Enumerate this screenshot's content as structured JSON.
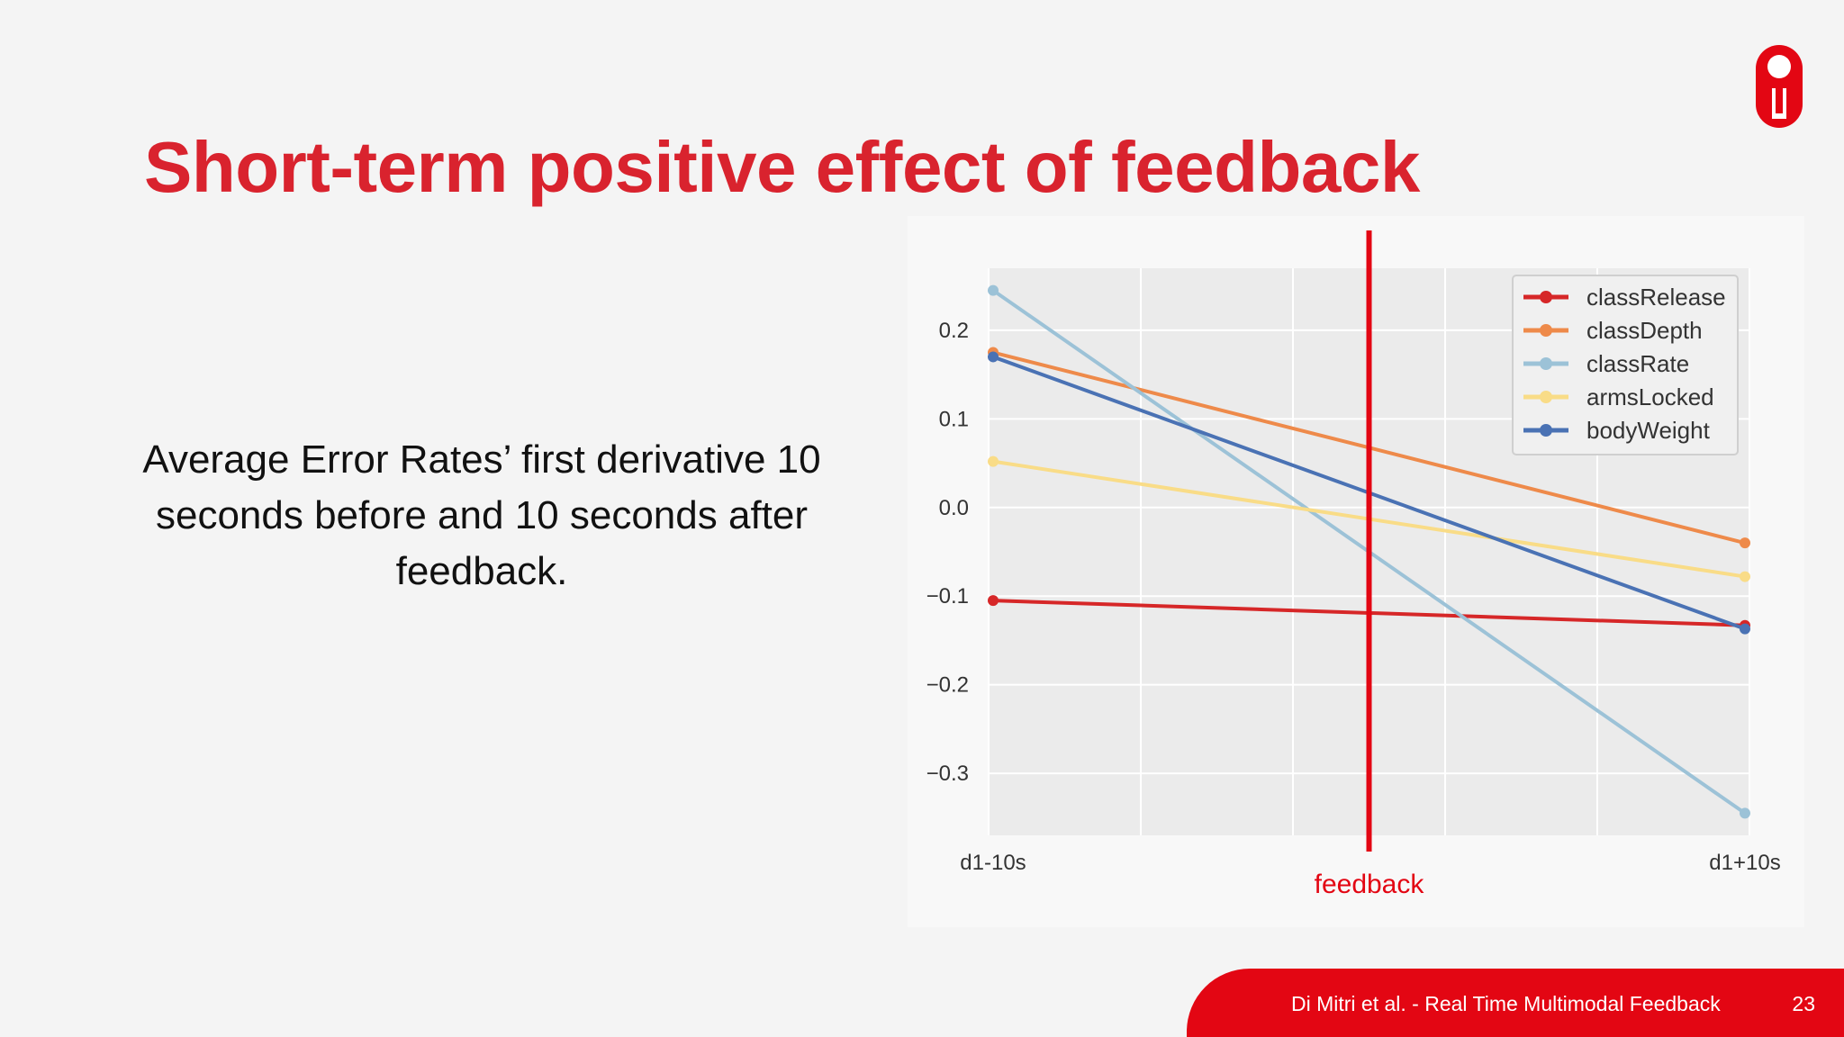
{
  "slide": {
    "title": "Short-term positive effect of feedback",
    "description": "Average Error Rates’ first derivative 10 seconds before and 10 seconds after feedback.",
    "footer_text": "Di Mitri et al. - Real Time Multimodal Feedback",
    "page_number": "23",
    "logo_icon": "ou-university-logo",
    "accent_color": "#e30613"
  },
  "chart_data": {
    "type": "line",
    "categories": [
      "d1-10s",
      "d1+10s"
    ],
    "yticks": [
      "0.2",
      "0.1",
      "0.0",
      "−0.1",
      "−0.2",
      "−0.3"
    ],
    "ylim": [
      -0.37,
      0.27
    ],
    "grid": true,
    "legend_position": "top-right",
    "annotation": {
      "label": "feedback",
      "x": 0.5,
      "color": "#e30613"
    },
    "series": [
      {
        "name": "classRelease",
        "color": "#d62728",
        "values": [
          -0.105,
          -0.133
        ]
      },
      {
        "name": "classDepth",
        "color": "#ee8a4a",
        "values": [
          0.175,
          -0.04
        ]
      },
      {
        "name": "classRate",
        "color": "#9cc2d7",
        "values": [
          0.245,
          -0.345
        ]
      },
      {
        "name": "armsLocked",
        "color": "#f9dc87",
        "values": [
          0.052,
          -0.078
        ]
      },
      {
        "name": "bodyWeight",
        "color": "#4a72b4",
        "values": [
          0.17,
          -0.137
        ]
      }
    ]
  }
}
